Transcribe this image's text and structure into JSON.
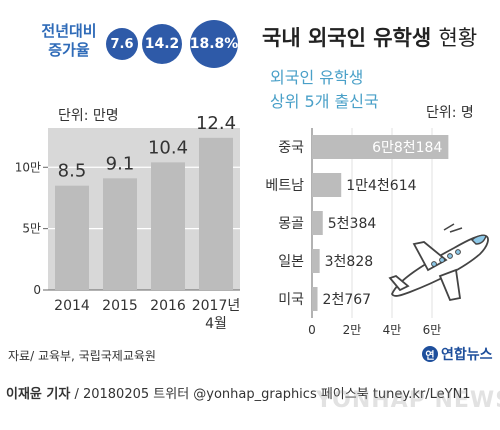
{
  "growth": {
    "label_line1": "전년대비",
    "label_line2": "증가율",
    "values": [
      "7.6",
      "14.2",
      "18.8%"
    ]
  },
  "title": {
    "main": "국내 외국인 유학생",
    "light": "현황"
  },
  "source": "자료/ 교육부, 국립국제교육원",
  "footer": {
    "reporter": "이재윤 기자",
    "rest": " / 20180205  트위터 @yonhap_graphics  페이스북 tuney.kr/LeYN1"
  },
  "logo": {
    "text": "연합뉴스",
    "mark": "연"
  },
  "watermark": "YONHAP NEWS",
  "chart_data": [
    {
      "type": "bar",
      "ylabel": "단위: 만명",
      "categories": [
        "2014",
        "2015",
        "2016",
        "2017년 4월"
      ],
      "x_labels": [
        [
          "2014"
        ],
        [
          "2015"
        ],
        [
          "2016"
        ],
        [
          "2017년",
          "4월"
        ]
      ],
      "values": [
        8.5,
        9.1,
        10.4,
        12.4
      ],
      "value_labels": [
        "8.5",
        "9.1",
        "10.4",
        "12.4"
      ],
      "ylim": [
        0,
        13.2
      ],
      "yticks": [
        0,
        5,
        10
      ],
      "ytick_labels": [
        "0",
        "5만",
        "10만"
      ],
      "grid": true,
      "colors": {
        "bar": "#bcbcbc",
        "background": "#d8d8d8",
        "grid": "#ffffff"
      }
    },
    {
      "type": "bar",
      "orientation": "horizontal",
      "title_line1": "외국인 유학생",
      "title_line2": "상위 5개 출신국",
      "unit": "단위: 명",
      "categories": [
        "중국",
        "베트남",
        "몽골",
        "일본",
        "미국"
      ],
      "values": [
        68184,
        14614,
        5384,
        3828,
        2767
      ],
      "value_labels": [
        "6만8천184",
        "1만4천614",
        "5천384",
        "3천828",
        "2천767"
      ],
      "xlim": [
        0,
        70000
      ],
      "xticks": [
        0,
        20000,
        40000,
        60000
      ],
      "xtick_labels": [
        "0",
        "2만",
        "4만",
        "6만"
      ],
      "grid": true,
      "colors": {
        "bar": "#bcbcbc",
        "grid": "#ffffff"
      }
    }
  ]
}
